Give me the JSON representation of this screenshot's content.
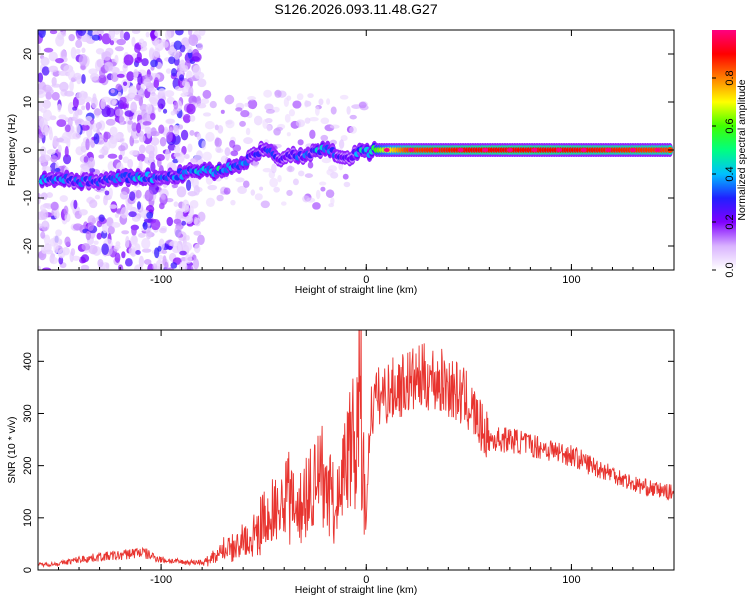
{
  "figure": {
    "title": "S126.2026.093.11.48.G27"
  },
  "chart_data": [
    {
      "type": "heatmap",
      "name": "spectrogram",
      "xlabel": "Height of straight line (km)",
      "ylabel": "Frequency (Hz)",
      "xlim": [
        -160,
        150
      ],
      "ylim": [
        -25,
        25
      ],
      "xticks": [
        -100,
        0,
        100
      ],
      "yticks": [
        -20,
        -10,
        0,
        10,
        20
      ],
      "colorbar": {
        "label": "Normalized spectral amplitude",
        "range": [
          0,
          1
        ],
        "ticks": [
          0.0,
          0.2,
          0.4,
          0.6,
          0.8
        ],
        "tick_labels": [
          "0.0",
          "0.2",
          "0.4",
          "0.6",
          "0.8"
        ],
        "colormap": [
          "#ffffff",
          "#d9b3ff",
          "#8000ff",
          "#2020ff",
          "#00c0ff",
          "#00ff80",
          "#40ff00",
          "#ffff00",
          "#ff8000",
          "#ff0000",
          "#ff0080"
        ]
      },
      "ridge": {
        "x": [
          -150,
          -140,
          -130,
          -120,
          -110,
          -100,
          -85,
          -75,
          -65,
          -60,
          -55,
          -50,
          -45,
          -40,
          -35,
          -30,
          -25,
          -20,
          -15,
          -10,
          -5,
          0,
          5,
          20,
          50,
          100,
          150
        ],
        "freq": [
          -6,
          -6.5,
          -6.5,
          -6,
          -5.5,
          -6,
          -4.5,
          -4.5,
          -3.5,
          -3,
          -1,
          0.5,
          -1,
          -2,
          -1,
          -1.5,
          -0.5,
          0.5,
          -1,
          -2,
          -0.5,
          -0.5,
          0,
          0,
          0,
          0,
          0
        ],
        "amplitude": [
          0.35,
          0.3,
          0.3,
          0.35,
          0.4,
          0.3,
          0.35,
          0.45,
          0.4,
          0.35,
          0.3,
          0.25,
          0.3,
          0.25,
          0.35,
          0.3,
          0.35,
          0.45,
          0.3,
          0.25,
          0.35,
          0.45,
          0.6,
          0.85,
          0.9,
          0.9,
          0.85
        ]
      }
    },
    {
      "type": "line",
      "name": "snr",
      "xlabel": "Height of straight line (km)",
      "ylabel": "SNR (10 * v/v)",
      "xlim": [
        -160,
        150
      ],
      "ylim": [
        0,
        460
      ],
      "xticks": [
        -100,
        0,
        100
      ],
      "yticks": [
        0,
        100,
        200,
        300,
        400
      ],
      "color": "#e8342f",
      "series": [
        {
          "name": "SNR",
          "x": [
            -160,
            -150,
            -140,
            -130,
            -120,
            -110,
            -100,
            -90,
            -80,
            -75,
            -70,
            -65,
            -60,
            -55,
            -50,
            -45,
            -40,
            -35,
            -30,
            -25,
            -20,
            -15,
            -10,
            -5,
            -3,
            -2,
            0,
            2,
            5,
            10,
            20,
            30,
            40,
            50,
            55,
            60,
            70,
            80,
            90,
            100,
            110,
            120,
            130,
            140,
            150
          ],
          "y": [
            10,
            12,
            20,
            25,
            28,
            35,
            20,
            15,
            15,
            25,
            40,
            50,
            60,
            70,
            100,
            120,
            160,
            140,
            160,
            180,
            200,
            120,
            230,
            260,
            460,
            240,
            110,
            300,
            330,
            340,
            360,
            370,
            355,
            320,
            280,
            250,
            250,
            240,
            230,
            220,
            200,
            185,
            165,
            155,
            148
          ]
        }
      ]
    }
  ]
}
